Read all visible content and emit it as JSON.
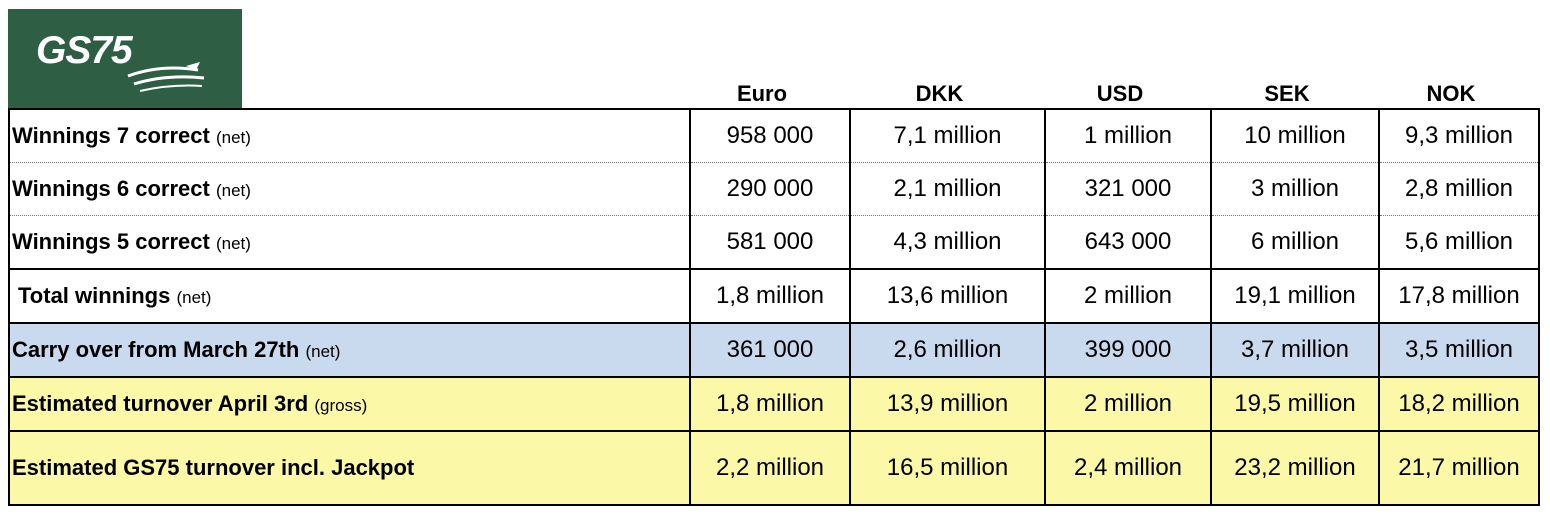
{
  "logo": {
    "text": "GS75"
  },
  "columns": [
    "Euro",
    "DKK",
    "USD",
    "SEK",
    "NOK"
  ],
  "rows": [
    {
      "label": "Winnings 7 correct",
      "qualifier": "(net)",
      "values": [
        "958 000",
        "7,1 million",
        "1 million",
        "10 million",
        "9,3 million"
      ]
    },
    {
      "label": "Winnings 6 correct",
      "qualifier": "(net)",
      "values": [
        "290 000",
        "2,1 million",
        "321 000",
        "3 million",
        "2,8 million"
      ]
    },
    {
      "label": "Winnings 5 correct",
      "qualifier": "(net)",
      "values": [
        "581 000",
        "4,3 million",
        "643 000",
        "6 million",
        "5,6 million"
      ]
    },
    {
      "label": "Total winnings",
      "qualifier": "(net)",
      "values": [
        "1,8 million",
        "13,6 million",
        "2 million",
        "19,1 million",
        "17,8 million"
      ]
    },
    {
      "label": "Carry over from March 27th",
      "qualifier": "(net)",
      "values": [
        "361 000",
        "2,6 million",
        "399 000",
        "3,7 million",
        "3,5 million"
      ]
    },
    {
      "label": "Estimated turnover April 3rd",
      "qualifier": "(gross)",
      "values": [
        "1,8 million",
        "13,9 million",
        "2 million",
        "19,5 million",
        "18,2 million"
      ]
    },
    {
      "label": "Estimated GS75 turnover incl. Jackpot",
      "qualifier": "",
      "values": [
        "2,2 million",
        "16,5 million",
        "2,4 million",
        "23,2 million",
        "21,7 million"
      ]
    }
  ],
  "colors": {
    "logo_bg": "#2e5e44",
    "carry_bg": "#c9d9ee",
    "estimate_bg": "#fbf8a8"
  }
}
